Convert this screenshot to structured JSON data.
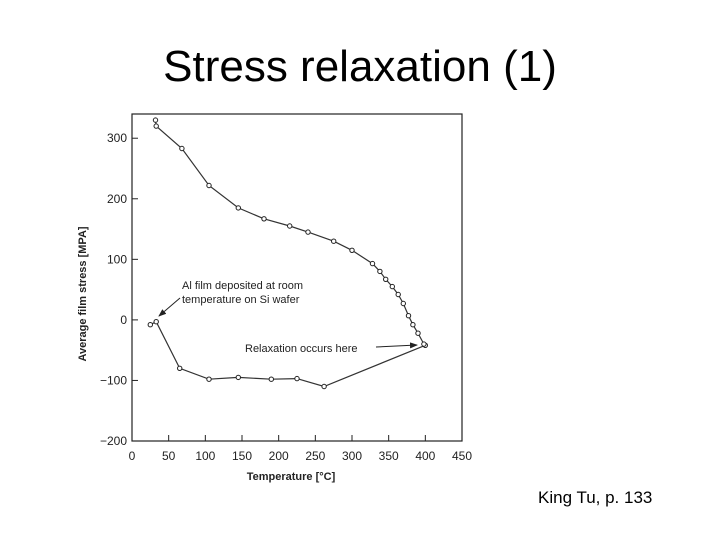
{
  "slide": {
    "title": "Stress relaxation (1)",
    "credit": "King Tu, p. 133"
  },
  "chart_data": {
    "type": "line",
    "xlabel": "Temperature [°C]",
    "ylabel": "Average film stress [MPA]",
    "xlim": [
      0,
      450
    ],
    "ylim": [
      -200,
      340
    ],
    "xticks": [
      0,
      50,
      100,
      150,
      200,
      250,
      300,
      350,
      400,
      450
    ],
    "yticks": [
      300,
      200,
      100,
      0,
      -100,
      -200
    ],
    "ytick_labels": [
      "300",
      "200",
      "100",
      "0",
      "−100",
      "−200"
    ],
    "grid": false,
    "series": [
      {
        "marker": "open-circle",
        "points": [
          [
            25,
            -8
          ],
          [
            33,
            -3
          ],
          [
            65,
            -80
          ],
          [
            105,
            -98
          ],
          [
            145,
            -95
          ],
          [
            190,
            -98
          ],
          [
            225,
            -97
          ],
          [
            262,
            -110
          ],
          [
            400,
            -42
          ],
          [
            398,
            -40
          ],
          [
            390,
            -22
          ],
          [
            383,
            -8
          ],
          [
            377,
            7
          ],
          [
            370,
            27
          ],
          [
            363,
            42
          ],
          [
            355,
            55
          ],
          [
            346,
            67
          ],
          [
            338,
            80
          ],
          [
            328,
            93
          ],
          [
            300,
            115
          ],
          [
            275,
            130
          ],
          [
            240,
            145
          ],
          [
            215,
            155
          ],
          [
            180,
            167
          ],
          [
            145,
            185
          ],
          [
            105,
            222
          ],
          [
            68,
            283
          ],
          [
            33,
            320
          ],
          [
            32,
            330
          ]
        ]
      }
    ],
    "annotations": [
      {
        "lines": [
          "Al film deposited at room",
          "temperature on Si wafer"
        ]
      },
      {
        "lines": [
          "Relaxation occurs here"
        ]
      }
    ]
  }
}
